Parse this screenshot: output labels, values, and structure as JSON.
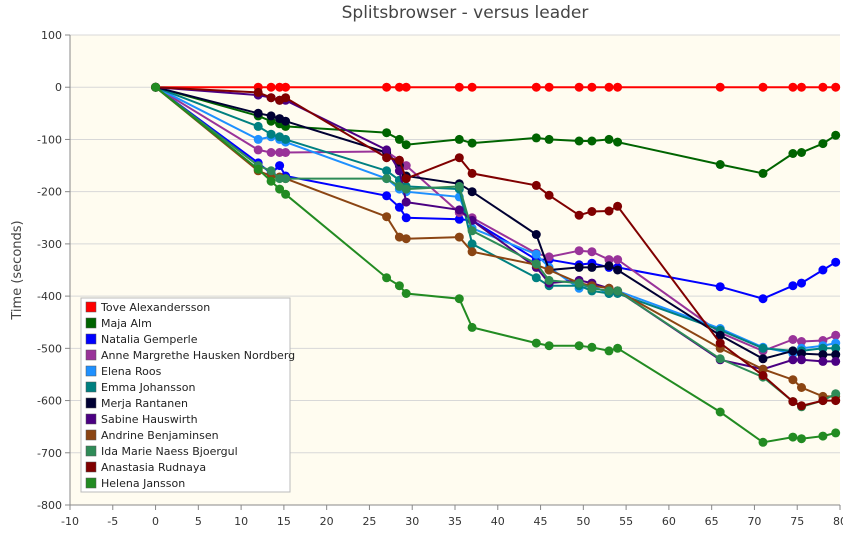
{
  "chart_data": {
    "type": "line",
    "title": "Splitsbrowser - versus leader",
    "xlabel": "",
    "ylabel": "Time (seconds)",
    "xlim": [
      -10,
      80
    ],
    "ylim": [
      -800,
      100
    ],
    "x_ticks": [
      -10,
      -5,
      0,
      5,
      10,
      15,
      20,
      25,
      30,
      35,
      40,
      45,
      50,
      55,
      60,
      65,
      70,
      75,
      80
    ],
    "y_ticks": [
      100,
      0,
      -100,
      -200,
      -300,
      -400,
      -500,
      -600,
      -700,
      -800
    ],
    "grid": true,
    "legend_position": "bottom-left",
    "plot_background": "#fffcf0",
    "series": [
      {
        "name": "Tove Alexandersson",
        "color": "#ff0000",
        "points": [
          [
            0,
            0
          ],
          [
            12,
            0
          ],
          [
            13.5,
            0
          ],
          [
            14.5,
            0
          ],
          [
            15.2,
            0
          ],
          [
            27,
            0
          ],
          [
            28.5,
            0
          ],
          [
            29.3,
            0
          ],
          [
            35.5,
            0
          ],
          [
            37,
            0
          ],
          [
            44.5,
            0
          ],
          [
            46,
            0
          ],
          [
            49.5,
            0
          ],
          [
            51,
            0
          ],
          [
            53,
            0
          ],
          [
            54,
            0
          ],
          [
            66,
            0
          ],
          [
            71,
            0
          ],
          [
            74.5,
            0
          ],
          [
            75.5,
            0
          ],
          [
            78,
            0
          ],
          [
            79.5,
            0
          ]
        ]
      },
      {
        "name": "Maja Alm",
        "color": "#006400",
        "points": [
          [
            0,
            0
          ],
          [
            12,
            -55
          ],
          [
            13.5,
            -65
          ],
          [
            14.5,
            -70
          ],
          [
            15.2,
            -75
          ],
          [
            27,
            -87
          ],
          [
            28.5,
            -100
          ],
          [
            29.3,
            -110
          ],
          [
            35.5,
            -100
          ],
          [
            37,
            -107
          ],
          [
            44.5,
            -97
          ],
          [
            46,
            -100
          ],
          [
            49.5,
            -103
          ],
          [
            51,
            -103
          ],
          [
            53,
            -100
          ],
          [
            54,
            -105
          ],
          [
            66,
            -148
          ],
          [
            71,
            -165
          ],
          [
            74.5,
            -127
          ],
          [
            75.5,
            -125
          ],
          [
            78,
            -108
          ],
          [
            79.5,
            -92
          ]
        ]
      },
      {
        "name": "Natalia Gemperle",
        "color": "#0000ff",
        "points": [
          [
            0,
            0
          ],
          [
            12,
            -145
          ],
          [
            13.5,
            -165
          ],
          [
            14.5,
            -150
          ],
          [
            15.2,
            -170
          ],
          [
            27,
            -208
          ],
          [
            28.5,
            -230
          ],
          [
            29.3,
            -250
          ],
          [
            35.5,
            -253
          ],
          [
            37,
            -255
          ],
          [
            44.5,
            -330
          ],
          [
            46,
            -330
          ],
          [
            49.5,
            -340
          ],
          [
            51,
            -337
          ],
          [
            53,
            -345
          ],
          [
            54,
            -345
          ],
          [
            66,
            -382
          ],
          [
            71,
            -405
          ],
          [
            74.5,
            -380
          ],
          [
            75.5,
            -375
          ],
          [
            78,
            -350
          ],
          [
            79.5,
            -335
          ]
        ]
      },
      {
        "name": "Anne Margrethe Hausken Nordberg",
        "color": "#993399",
        "points": [
          [
            0,
            0
          ],
          [
            12,
            -120
          ],
          [
            13.5,
            -125
          ],
          [
            14.5,
            -125
          ],
          [
            15.2,
            -125
          ],
          [
            27,
            -123
          ],
          [
            28.5,
            -140
          ],
          [
            29.3,
            -150
          ],
          [
            35.5,
            -240
          ],
          [
            37,
            -250
          ],
          [
            44.5,
            -318
          ],
          [
            46,
            -325
          ],
          [
            49.5,
            -313
          ],
          [
            51,
            -315
          ],
          [
            53,
            -330
          ],
          [
            54,
            -330
          ],
          [
            66,
            -470
          ],
          [
            71,
            -505
          ],
          [
            74.5,
            -483
          ],
          [
            75.5,
            -487
          ],
          [
            78,
            -485
          ],
          [
            79.5,
            -475
          ]
        ]
      },
      {
        "name": "Elena Roos",
        "color": "#1e90ff",
        "points": [
          [
            0,
            0
          ],
          [
            12,
            -100
          ],
          [
            13.5,
            -95
          ],
          [
            14.5,
            -100
          ],
          [
            15.2,
            -105
          ],
          [
            27,
            -175
          ],
          [
            28.5,
            -195
          ],
          [
            29.3,
            -200
          ],
          [
            35.5,
            -210
          ],
          [
            37,
            -270
          ],
          [
            44.5,
            -320
          ],
          [
            46,
            -345
          ],
          [
            49.5,
            -385
          ],
          [
            51,
            -380
          ],
          [
            53,
            -395
          ],
          [
            54,
            -390
          ],
          [
            66,
            -462
          ],
          [
            71,
            -498
          ],
          [
            74.5,
            -510
          ],
          [
            75.5,
            -500
          ],
          [
            78,
            -495
          ],
          [
            79.5,
            -490
          ]
        ]
      },
      {
        "name": "Emma Johansson",
        "color": "#008080",
        "points": [
          [
            0,
            0
          ],
          [
            12,
            -75
          ],
          [
            13.5,
            -90
          ],
          [
            14.5,
            -95
          ],
          [
            15.2,
            -100
          ],
          [
            27,
            -160
          ],
          [
            28.5,
            -178
          ],
          [
            29.3,
            -190
          ],
          [
            35.5,
            -195
          ],
          [
            37,
            -300
          ],
          [
            44.5,
            -365
          ],
          [
            46,
            -380
          ],
          [
            49.5,
            -380
          ],
          [
            51,
            -390
          ],
          [
            53,
            -395
          ],
          [
            54,
            -395
          ],
          [
            66,
            -465
          ],
          [
            71,
            -500
          ],
          [
            74.5,
            -505
          ],
          [
            75.5,
            -505
          ],
          [
            78,
            -500
          ],
          [
            79.5,
            -500
          ]
        ]
      },
      {
        "name": "Merja Rantanen",
        "color": "#000033",
        "points": [
          [
            0,
            0
          ],
          [
            12,
            -50
          ],
          [
            13.5,
            -55
          ],
          [
            14.5,
            -60
          ],
          [
            15.2,
            -65
          ],
          [
            27,
            -125
          ],
          [
            28.5,
            -150
          ],
          [
            29.3,
            -170
          ],
          [
            35.5,
            -185
          ],
          [
            37,
            -200
          ],
          [
            44.5,
            -282
          ],
          [
            46,
            -350
          ],
          [
            49.5,
            -345
          ],
          [
            51,
            -345
          ],
          [
            53,
            -342
          ],
          [
            54,
            -350
          ],
          [
            66,
            -475
          ],
          [
            71,
            -520
          ],
          [
            74.5,
            -505
          ],
          [
            75.5,
            -510
          ],
          [
            78,
            -512
          ],
          [
            79.5,
            -512
          ]
        ]
      },
      {
        "name": "Sabine Hauswirth",
        "color": "#4b0082",
        "points": [
          [
            0,
            0
          ],
          [
            12,
            -15
          ],
          [
            13.5,
            -20
          ],
          [
            14.5,
            -25
          ],
          [
            15.2,
            -25
          ],
          [
            27,
            -120
          ],
          [
            28.5,
            -160
          ],
          [
            29.3,
            -220
          ],
          [
            35.5,
            -235
          ],
          [
            37,
            -255
          ],
          [
            44.5,
            -345
          ],
          [
            46,
            -375
          ],
          [
            49.5,
            -370
          ],
          [
            51,
            -375
          ],
          [
            53,
            -385
          ],
          [
            54,
            -390
          ],
          [
            66,
            -522
          ],
          [
            71,
            -540
          ],
          [
            74.5,
            -522
          ],
          [
            75.5,
            -522
          ],
          [
            78,
            -525
          ],
          [
            79.5,
            -525
          ]
        ]
      },
      {
        "name": "Andrine Benjaminsen",
        "color": "#8b4513",
        "points": [
          [
            0,
            0
          ],
          [
            12,
            -160
          ],
          [
            13.5,
            -170
          ],
          [
            14.5,
            -172
          ],
          [
            15.2,
            -175
          ],
          [
            27,
            -248
          ],
          [
            28.5,
            -287
          ],
          [
            29.3,
            -290
          ],
          [
            35.5,
            -287
          ],
          [
            37,
            -315
          ],
          [
            44.5,
            -340
          ],
          [
            46,
            -350
          ],
          [
            49.5,
            -375
          ],
          [
            51,
            -380
          ],
          [
            53,
            -385
          ],
          [
            54,
            -390
          ],
          [
            66,
            -500
          ],
          [
            71,
            -540
          ],
          [
            74.5,
            -560
          ],
          [
            75.5,
            -575
          ],
          [
            78,
            -592
          ],
          [
            79.5,
            -592
          ]
        ]
      },
      {
        "name": "Ida Marie Naess Bjoergul",
        "color": "#2e8b57",
        "points": [
          [
            0,
            0
          ],
          [
            12,
            -150
          ],
          [
            13.5,
            -160
          ],
          [
            14.5,
            -175
          ],
          [
            15.2,
            -175
          ],
          [
            27,
            -175
          ],
          [
            28.5,
            -190
          ],
          [
            29.3,
            -195
          ],
          [
            35.5,
            -190
          ],
          [
            37,
            -275
          ],
          [
            44.5,
            -338
          ],
          [
            46,
            -370
          ],
          [
            49.5,
            -375
          ],
          [
            51,
            -385
          ],
          [
            53,
            -390
          ],
          [
            54,
            -390
          ],
          [
            66,
            -520
          ],
          [
            71,
            -555
          ],
          [
            74.5,
            -602
          ],
          [
            75.5,
            -612
          ],
          [
            78,
            -600
          ],
          [
            79.5,
            -587
          ]
        ]
      },
      {
        "name": "Anastasia Rudnaya",
        "color": "#800000",
        "points": [
          [
            0,
            0
          ],
          [
            12,
            -10
          ],
          [
            13.5,
            -20
          ],
          [
            14.5,
            -25
          ],
          [
            15.2,
            -20
          ],
          [
            27,
            -135
          ],
          [
            28.5,
            -140
          ],
          [
            29.3,
            -175
          ],
          [
            35.5,
            -135
          ],
          [
            37,
            -165
          ],
          [
            44.5,
            -188
          ],
          [
            46,
            -207
          ],
          [
            49.5,
            -245
          ],
          [
            51,
            -238
          ],
          [
            53,
            -237
          ],
          [
            54,
            -228
          ],
          [
            66,
            -490
          ],
          [
            71,
            -552
          ],
          [
            74.5,
            -602
          ],
          [
            75.5,
            -610
          ],
          [
            78,
            -600
          ],
          [
            79.5,
            -600
          ]
        ]
      },
      {
        "name": "Helena Jansson",
        "color": "#228b22",
        "points": [
          [
            0,
            0
          ],
          [
            12,
            -157
          ],
          [
            13.5,
            -180
          ],
          [
            14.5,
            -195
          ],
          [
            15.2,
            -205
          ],
          [
            27,
            -365
          ],
          [
            28.5,
            -380
          ],
          [
            29.3,
            -395
          ],
          [
            35.5,
            -405
          ],
          [
            37,
            -460
          ],
          [
            44.5,
            -490
          ],
          [
            46,
            -495
          ],
          [
            49.5,
            -495
          ],
          [
            51,
            -498
          ],
          [
            53,
            -505
          ],
          [
            54,
            -500
          ],
          [
            66,
            -622
          ],
          [
            71,
            -680
          ],
          [
            74.5,
            -670
          ],
          [
            75.5,
            -673
          ],
          [
            78,
            -668
          ],
          [
            79.5,
            -662
          ]
        ]
      }
    ]
  }
}
